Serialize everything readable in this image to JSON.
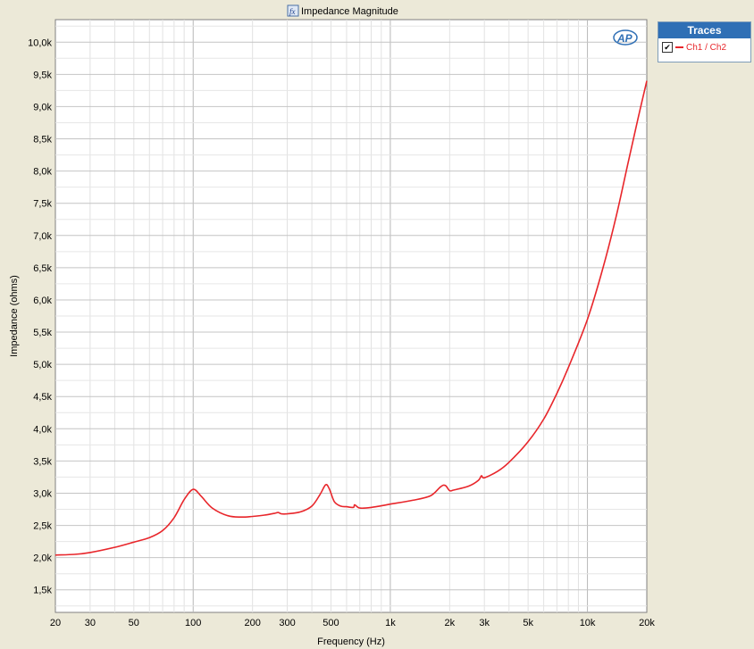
{
  "window": {
    "title": "Impedance Magnitude",
    "title_icon": "fx-icon",
    "logo_text": "AP"
  },
  "traces_panel": {
    "header": "Traces",
    "items": [
      {
        "label": "Ch1 / Ch2",
        "checked": true,
        "check_mark": "✔",
        "color": "#e8262b"
      }
    ]
  },
  "chart_data": {
    "type": "line",
    "title": "Impedance Magnitude",
    "xlabel": "Frequency (Hz)",
    "ylabel": "Impedance (ohms)",
    "x_scale": "log",
    "xlim": [
      20,
      20000
    ],
    "ylim": [
      1150,
      10350
    ],
    "grid": true,
    "x_ticks": [
      {
        "value": 20,
        "label": "20"
      },
      {
        "value": 30,
        "label": "30"
      },
      {
        "value": 50,
        "label": "50"
      },
      {
        "value": 100,
        "label": "100"
      },
      {
        "value": 200,
        "label": "200"
      },
      {
        "value": 300,
        "label": "300"
      },
      {
        "value": 500,
        "label": "500"
      },
      {
        "value": 1000,
        "label": "1k"
      },
      {
        "value": 2000,
        "label": "2k"
      },
      {
        "value": 3000,
        "label": "3k"
      },
      {
        "value": 5000,
        "label": "5k"
      },
      {
        "value": 10000,
        "label": "10k"
      },
      {
        "value": 20000,
        "label": "20k"
      }
    ],
    "y_ticks": [
      {
        "value": 1500,
        "label": "1,5k"
      },
      {
        "value": 2000,
        "label": "2,0k"
      },
      {
        "value": 2500,
        "label": "2,5k"
      },
      {
        "value": 3000,
        "label": "3,0k"
      },
      {
        "value": 3500,
        "label": "3,5k"
      },
      {
        "value": 4000,
        "label": "4,0k"
      },
      {
        "value": 4500,
        "label": "4,5k"
      },
      {
        "value": 5000,
        "label": "5,0k"
      },
      {
        "value": 5500,
        "label": "5,5k"
      },
      {
        "value": 6000,
        "label": "6,0k"
      },
      {
        "value": 6500,
        "label": "6,5k"
      },
      {
        "value": 7000,
        "label": "7,0k"
      },
      {
        "value": 7500,
        "label": "7,5k"
      },
      {
        "value": 8000,
        "label": "8,0k"
      },
      {
        "value": 8500,
        "label": "8,5k"
      },
      {
        "value": 9000,
        "label": "9,0k"
      },
      {
        "value": 9500,
        "label": "9,5k"
      },
      {
        "value": 10000,
        "label": "10,0k"
      }
    ],
    "series": [
      {
        "name": "Ch1 / Ch2",
        "color": "#e8262b",
        "x": [
          20,
          25,
          30,
          40,
          50,
          60,
          70,
          80,
          90,
          100,
          110,
          125,
          150,
          175,
          200,
          230,
          260,
          270,
          280,
          300,
          350,
          400,
          440,
          470,
          490,
          520,
          560,
          600,
          650,
          660,
          700,
          800,
          1000,
          1300,
          1600,
          1800,
          1900,
          2000,
          2100,
          2500,
          2800,
          2900,
          3000,
          3500,
          4000,
          5000,
          6000,
          7000,
          8000,
          10000,
          12000,
          14000,
          16000,
          18000,
          20000
        ],
        "y": [
          2040,
          2050,
          2080,
          2160,
          2240,
          2310,
          2420,
          2620,
          2900,
          3060,
          2950,
          2770,
          2650,
          2630,
          2640,
          2660,
          2690,
          2700,
          2680,
          2680,
          2710,
          2800,
          2980,
          3130,
          3070,
          2870,
          2800,
          2790,
          2780,
          2820,
          2770,
          2780,
          2830,
          2890,
          2960,
          3100,
          3120,
          3040,
          3050,
          3110,
          3200,
          3270,
          3240,
          3340,
          3480,
          3800,
          4150,
          4550,
          4950,
          5700,
          6500,
          7300,
          8100,
          8800,
          9400
        ]
      }
    ]
  }
}
